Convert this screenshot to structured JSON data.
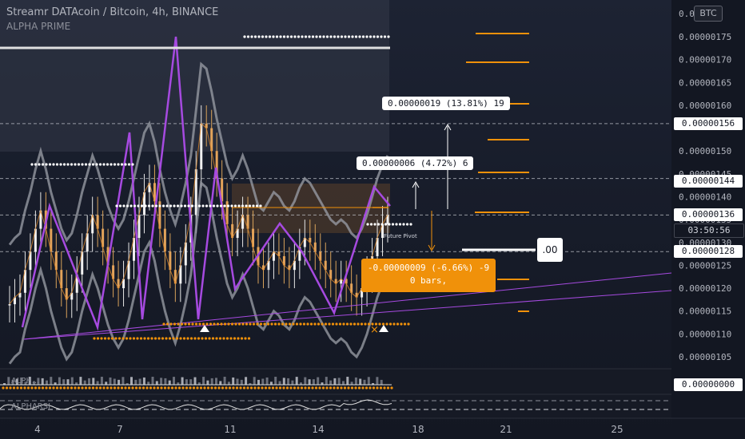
{
  "header": {
    "title": "Streamr DATAcoin / Bitcoin, 4h, BINANCE",
    "subtitle": "ALPHA PRIME",
    "currency_button": "BTC"
  },
  "chart_data": {
    "type": "candlestick",
    "symbol": "DATA/BTC",
    "timeframe": "4h",
    "exchange": "BINANCE",
    "y_axis": {
      "ticks": [
        "0.00000175",
        "0.00000170",
        "0.00000165",
        "0.00000160",
        "0.00000150",
        "0.00000145",
        "0.00000140",
        "0.00000135",
        "0.00000130",
        "0.00000125",
        "0.00000120",
        "0.00000115",
        "0.00000110",
        "0.00000105"
      ],
      "top_partial": "0.0",
      "ylim": [
        1.01e-06,
        1.81e-06
      ]
    },
    "x_axis": {
      "ticks": [
        "4",
        "7",
        "11",
        "14",
        "18",
        "21",
        "25"
      ]
    },
    "price_tags": [
      {
        "label": "0.00000156",
        "value": 1.56e-06,
        "style": "light"
      },
      {
        "label": "0.00000144",
        "value": 1.44e-06,
        "style": "light"
      },
      {
        "label": "0.00000136",
        "value": 1.36e-06,
        "style": "light"
      },
      {
        "label": "03:50:56",
        "value": 1.328e-06,
        "style": "dark"
      },
      {
        "label": "0.00000128",
        "value": 1.28e-06,
        "style": "light"
      }
    ],
    "indicator_tag": "0.00000000",
    "close_series": [
      1.165e-06,
      1.18e-06,
      1.19e-06,
      1.24e-06,
      1.28e-06,
      1.33e-06,
      1.37e-06,
      1.33e-06,
      1.28e-06,
      1.24e-06,
      1.2e-06,
      1.175e-06,
      1.19e-06,
      1.23e-06,
      1.28e-06,
      1.32e-06,
      1.36e-06,
      1.33e-06,
      1.29e-06,
      1.25e-06,
      1.22e-06,
      1.2e-06,
      1.22e-06,
      1.26e-06,
      1.31e-06,
      1.36e-06,
      1.41e-06,
      1.43e-06,
      1.39e-06,
      1.33e-06,
      1.28e-06,
      1.24e-06,
      1.21e-06,
      1.25e-06,
      1.3e-06,
      1.36e-06,
      1.46e-06,
      1.56e-06,
      1.55e-06,
      1.5e-06,
      1.44e-06,
      1.39e-06,
      1.34e-06,
      1.31e-06,
      1.33e-06,
      1.36e-06,
      1.33e-06,
      1.29e-06,
      1.25e-06,
      1.24e-06,
      1.26e-06,
      1.28e-06,
      1.27e-06,
      1.25e-06,
      1.24e-06,
      1.26e-06,
      1.29e-06,
      1.31e-06,
      1.3e-06,
      1.28e-06,
      1.26e-06,
      1.24e-06,
      1.22e-06,
      1.21e-06,
      1.22e-06,
      1.21e-06,
      1.19e-06,
      1.18e-06,
      1.2e-06,
      1.23e-06,
      1.27e-06,
      1.31e-06,
      1.34e-06,
      1.36e-06
    ],
    "measure_labels": [
      {
        "text": "0.00000019 (13.81%) 19",
        "value": 1.59e-06
      },
      {
        "text": "0.00000006 (4.72%) 6",
        "value": 1.46e-06
      }
    ],
    "measure_down": {
      "line1": "-0.00000009 (-6.66%) -9",
      "line2": "0 bars,"
    },
    "annotation": "Future Pivot",
    "side_label": ".00",
    "indicators": [
      "ALPH...",
      "ALPHARSI"
    ]
  },
  "colors": {
    "accent_orange": "#f0910a",
    "purple": "#9b30d6",
    "band_gray": "#9598a1",
    "background": "#131722"
  }
}
